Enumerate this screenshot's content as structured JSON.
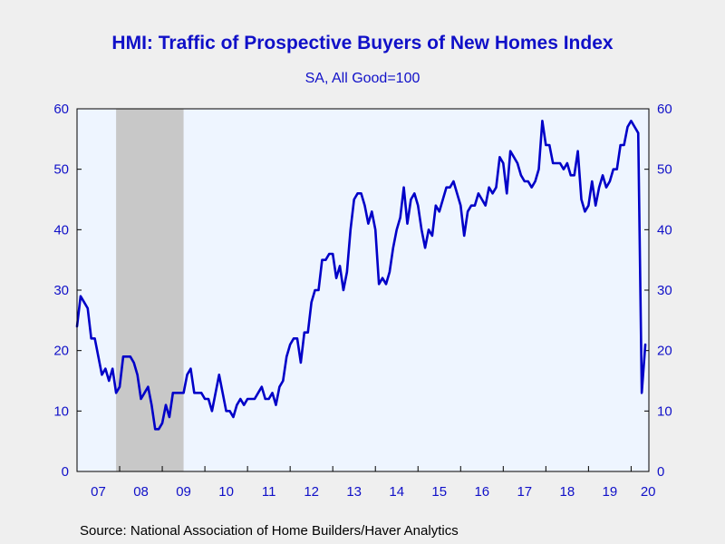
{
  "title": "HMI: Traffic of Prospective Buyers of New Homes Index",
  "subtitle": "SA, All Good=100",
  "source": "Source:  National Association of Home Builders/Haver Analytics",
  "colors": {
    "line": "#0000c8",
    "text": "#1010c8",
    "plot_background": "#eef5ff",
    "recession_shade": "#c8c8c8",
    "page_background": "#efefef"
  },
  "chart_data": {
    "type": "line",
    "title": "HMI: Traffic of Prospective Buyers of New Homes Index",
    "subtitle": "SA, All Good=100",
    "xlabel": "",
    "ylabel": "",
    "ylim": [
      0,
      60
    ],
    "yticks": [
      0,
      10,
      20,
      30,
      40,
      50,
      60
    ],
    "y_axis_both_sides": true,
    "x_start": "2007-01",
    "x_end": "2020-05",
    "x_tick_labels": [
      "07",
      "08",
      "09",
      "10",
      "11",
      "12",
      "13",
      "14",
      "15",
      "16",
      "17",
      "18",
      "19",
      "20"
    ],
    "grid": false,
    "legend": "none",
    "shaded_regions": [
      {
        "label": "recession",
        "start": "2007-12",
        "end": "2009-06"
      }
    ],
    "series": [
      {
        "frequency": "monthly",
        "start": "2007-01",
        "values": [
          24,
          29,
          28,
          27,
          22,
          22,
          19,
          16,
          17,
          15,
          17,
          13,
          14,
          19,
          19,
          19,
          18,
          16,
          12,
          13,
          14,
          11,
          7,
          7,
          8,
          11,
          9,
          13,
          13,
          13,
          13,
          16,
          17,
          13,
          13,
          13,
          12,
          12,
          10,
          13,
          16,
          13,
          10,
          10,
          9,
          11,
          12,
          11,
          12,
          12,
          12,
          13,
          14,
          12,
          12,
          13,
          11,
          14,
          15,
          19,
          21,
          22,
          22,
          18,
          23,
          23,
          28,
          30,
          30,
          35,
          35,
          36,
          36,
          32,
          34,
          30,
          33,
          40,
          45,
          46,
          46,
          44,
          41,
          43,
          40,
          31,
          32,
          31,
          33,
          37,
          40,
          42,
          47,
          41,
          45,
          46,
          44,
          40,
          37,
          40,
          39,
          44,
          43,
          45,
          47,
          47,
          48,
          46,
          44,
          39,
          43,
          44,
          44,
          46,
          45,
          44,
          47,
          46,
          47,
          52,
          51,
          46,
          53,
          52,
          51,
          49,
          48,
          48,
          47,
          48,
          50,
          58,
          54,
          54,
          51,
          51,
          51,
          50,
          51,
          49,
          49,
          53,
          45,
          43,
          44,
          48,
          44,
          47,
          49,
          47,
          48,
          50,
          50,
          54,
          54,
          57,
          58,
          57,
          56,
          13,
          21
        ]
      }
    ]
  }
}
